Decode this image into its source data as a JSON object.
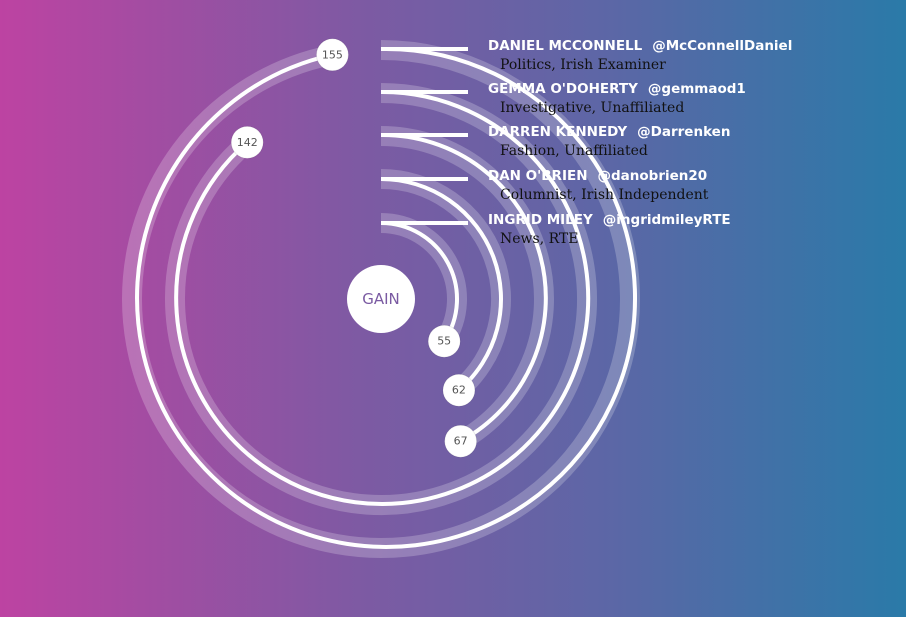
{
  "chart_data": {
    "type": "radial bar",
    "center_label": "GAIN",
    "series": [
      {
        "name": "DANIEL MCCONNELL",
        "handle": "@McConnellDaniel",
        "subtitle": "Politics, Irish Examiner",
        "value": 155
      },
      {
        "name": "GEMMA O'DOHERTY",
        "handle": "@gemmaod1",
        "subtitle": "Investigative, Unaffiliated",
        "value": 142
      },
      {
        "name": "DARREN KENNEDY",
        "handle": "@Darrenken",
        "subtitle": "Fashion, Unaffiliated",
        "value": 67
      },
      {
        "name": "DAN O'BRIEN",
        "handle": "@danobrien20",
        "subtitle": "Columnist, Irish Independent",
        "value": 62
      },
      {
        "name": "INGRID MILEY",
        "handle": "@ingridmileyRTE",
        "subtitle": "News, RTE",
        "value": 55
      }
    ]
  },
  "colors": {
    "ring_stroke": "#ffffff",
    "band_fill": "rgba(255,255,255,0.22)",
    "bubble_fill": "#ffffff",
    "name_text": "#ffffff",
    "subtitle_text": "#111111"
  }
}
